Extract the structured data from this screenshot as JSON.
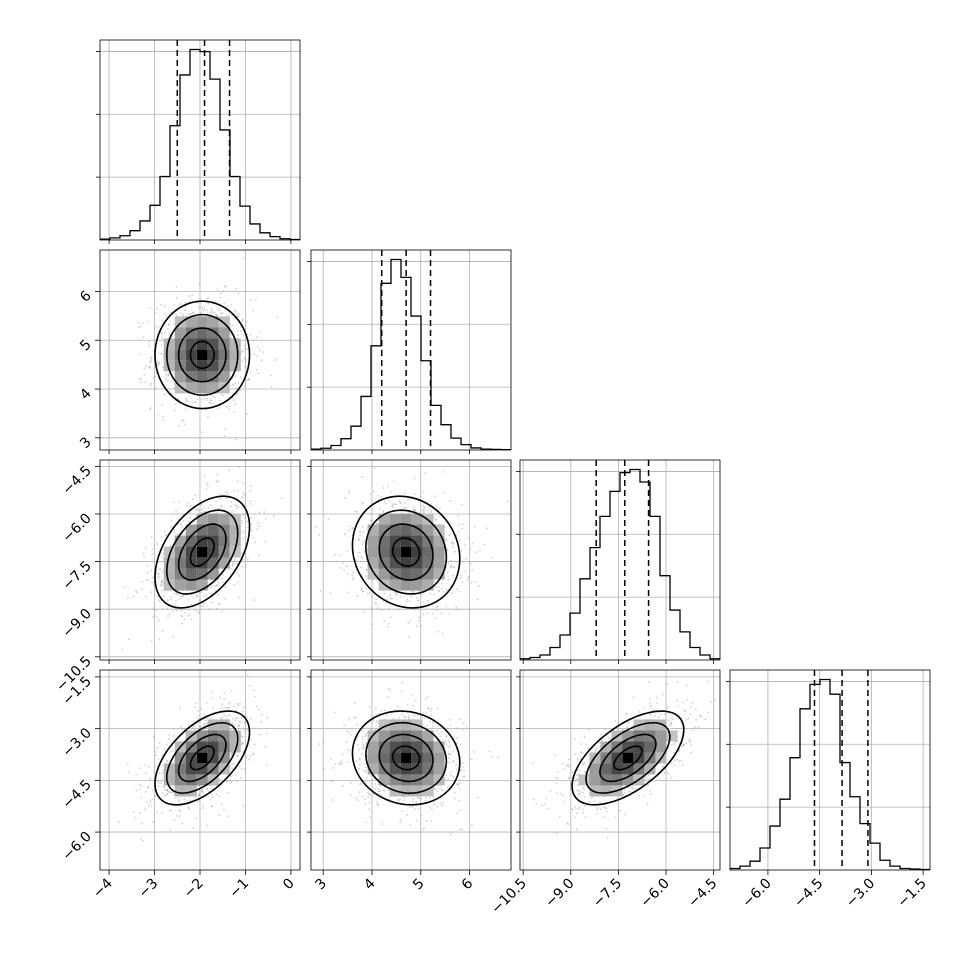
{
  "chart_data": {
    "type": "corner",
    "grid": true,
    "parameters": 4,
    "axes": [
      {
        "ticks": [
          -4,
          -3,
          -2,
          -1,
          0
        ],
        "tick_labels": [
          "−4",
          "−3",
          "−2",
          "−1",
          "0"
        ],
        "range": [
          -4.2,
          0.2
        ]
      },
      {
        "ticks": [
          3,
          4,
          5,
          6
        ],
        "tick_labels": [
          "3",
          "4",
          "5",
          "6"
        ],
        "range": [
          2.75,
          6.85
        ]
      },
      {
        "ticks": [
          -10.5,
          -9.0,
          -7.5,
          -6.0,
          -4.5
        ],
        "tick_labels": [
          "−10.5",
          "−9.0",
          "−7.5",
          "−6.0",
          "−4.5"
        ],
        "range": [
          -10.6,
          -4.3
        ]
      },
      {
        "ticks": [
          -6.0,
          -4.5,
          -3.0,
          -1.5
        ],
        "tick_labels": [
          "−6.0",
          "−4.5",
          "−3.0",
          "−1.5"
        ],
        "range": [
          -7.1,
          -1.3
        ]
      }
    ],
    "histograms": [
      {
        "edges_range": [
          -4.2,
          0.2
        ],
        "counts": [
          2,
          5,
          10,
          22,
          45,
          82,
          150,
          270,
          390,
          450,
          445,
          380,
          260,
          150,
          80,
          38,
          17,
          8,
          3,
          1
        ],
        "quantile_lines": [
          -2.5,
          -1.9,
          -1.35
        ]
      },
      {
        "edges_range": [
          2.75,
          6.85
        ],
        "counts": [
          3,
          6,
          15,
          38,
          80,
          180,
          350,
          560,
          640,
          580,
          450,
          300,
          150,
          85,
          40,
          18,
          7,
          3,
          2,
          1
        ],
        "quantile_lines": [
          4.2,
          4.7,
          5.2
        ]
      },
      {
        "edges_range": [
          -10.6,
          -4.3
        ],
        "counts": [
          2,
          4,
          8,
          20,
          40,
          75,
          130,
          180,
          230,
          270,
          300,
          305,
          285,
          230,
          135,
          80,
          45,
          20,
          8,
          2
        ],
        "quantile_lines": [
          -8.2,
          -7.3,
          -6.55
        ]
      },
      {
        "edges_range": [
          -7.1,
          -1.3
        ],
        "counts": [
          3,
          8,
          18,
          45,
          90,
          145,
          230,
          330,
          380,
          390,
          360,
          220,
          150,
          95,
          55,
          20,
          8,
          3,
          2,
          1
        ],
        "quantile_lines": [
          -4.65,
          -3.85,
          -3.1
        ]
      }
    ],
    "pairs": [
      {
        "x": 0,
        "y": 1,
        "mean": [
          -1.95,
          4.7
        ],
        "sd": [
          0.52,
          0.55
        ],
        "corr": 0.0
      },
      {
        "x": 0,
        "y": 2,
        "mean": [
          -1.95,
          -7.2
        ],
        "sd": [
          0.52,
          0.88
        ],
        "corr": 0.45
      },
      {
        "x": 1,
        "y": 2,
        "mean": [
          4.7,
          -7.2
        ],
        "sd": [
          0.55,
          0.88
        ],
        "corr": -0.12
      },
      {
        "x": 0,
        "y": 3,
        "mean": [
          -1.95,
          -3.85
        ],
        "sd": [
          0.52,
          0.68
        ],
        "corr": 0.55
      },
      {
        "x": 1,
        "y": 3,
        "mean": [
          4.7,
          -3.85
        ],
        "sd": [
          0.55,
          0.68
        ],
        "corr": -0.1
      },
      {
        "x": 2,
        "y": 3,
        "mean": [
          -7.2,
          -3.85
        ],
        "sd": [
          0.88,
          0.68
        ],
        "corr": 0.6
      }
    ],
    "contour_levels_sigma": [
      0.5,
      1.0,
      1.5,
      2.0
    ],
    "colors": {
      "line": "#000000",
      "grid": "#b0b0b0",
      "points": "#9a9a9a",
      "density_dark": "#000000"
    }
  }
}
